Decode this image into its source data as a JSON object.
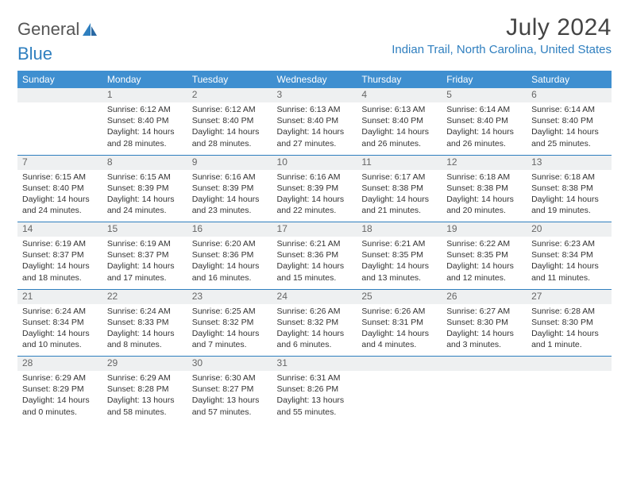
{
  "brand": {
    "general": "General",
    "blue": "Blue"
  },
  "title": {
    "month": "July 2024",
    "location": "Indian Trail, North Carolina, United States"
  },
  "colors": {
    "accent": "#3f8fd0",
    "link": "#2f7fbf",
    "daynum_bg": "#eef0f1",
    "text": "#333333"
  },
  "day_headers": [
    "Sunday",
    "Monday",
    "Tuesday",
    "Wednesday",
    "Thursday",
    "Friday",
    "Saturday"
  ],
  "weeks": [
    [
      null,
      {
        "n": "1",
        "sunrise": "6:12 AM",
        "sunset": "8:40 PM",
        "daylight": "14 hours and 28 minutes."
      },
      {
        "n": "2",
        "sunrise": "6:12 AM",
        "sunset": "8:40 PM",
        "daylight": "14 hours and 28 minutes."
      },
      {
        "n": "3",
        "sunrise": "6:13 AM",
        "sunset": "8:40 PM",
        "daylight": "14 hours and 27 minutes."
      },
      {
        "n": "4",
        "sunrise": "6:13 AM",
        "sunset": "8:40 PM",
        "daylight": "14 hours and 26 minutes."
      },
      {
        "n": "5",
        "sunrise": "6:14 AM",
        "sunset": "8:40 PM",
        "daylight": "14 hours and 26 minutes."
      },
      {
        "n": "6",
        "sunrise": "6:14 AM",
        "sunset": "8:40 PM",
        "daylight": "14 hours and 25 minutes."
      }
    ],
    [
      {
        "n": "7",
        "sunrise": "6:15 AM",
        "sunset": "8:40 PM",
        "daylight": "14 hours and 24 minutes."
      },
      {
        "n": "8",
        "sunrise": "6:15 AM",
        "sunset": "8:39 PM",
        "daylight": "14 hours and 24 minutes."
      },
      {
        "n": "9",
        "sunrise": "6:16 AM",
        "sunset": "8:39 PM",
        "daylight": "14 hours and 23 minutes."
      },
      {
        "n": "10",
        "sunrise": "6:16 AM",
        "sunset": "8:39 PM",
        "daylight": "14 hours and 22 minutes."
      },
      {
        "n": "11",
        "sunrise": "6:17 AM",
        "sunset": "8:38 PM",
        "daylight": "14 hours and 21 minutes."
      },
      {
        "n": "12",
        "sunrise": "6:18 AM",
        "sunset": "8:38 PM",
        "daylight": "14 hours and 20 minutes."
      },
      {
        "n": "13",
        "sunrise": "6:18 AM",
        "sunset": "8:38 PM",
        "daylight": "14 hours and 19 minutes."
      }
    ],
    [
      {
        "n": "14",
        "sunrise": "6:19 AM",
        "sunset": "8:37 PM",
        "daylight": "14 hours and 18 minutes."
      },
      {
        "n": "15",
        "sunrise": "6:19 AM",
        "sunset": "8:37 PM",
        "daylight": "14 hours and 17 minutes."
      },
      {
        "n": "16",
        "sunrise": "6:20 AM",
        "sunset": "8:36 PM",
        "daylight": "14 hours and 16 minutes."
      },
      {
        "n": "17",
        "sunrise": "6:21 AM",
        "sunset": "8:36 PM",
        "daylight": "14 hours and 15 minutes."
      },
      {
        "n": "18",
        "sunrise": "6:21 AM",
        "sunset": "8:35 PM",
        "daylight": "14 hours and 13 minutes."
      },
      {
        "n": "19",
        "sunrise": "6:22 AM",
        "sunset": "8:35 PM",
        "daylight": "14 hours and 12 minutes."
      },
      {
        "n": "20",
        "sunrise": "6:23 AM",
        "sunset": "8:34 PM",
        "daylight": "14 hours and 11 minutes."
      }
    ],
    [
      {
        "n": "21",
        "sunrise": "6:24 AM",
        "sunset": "8:34 PM",
        "daylight": "14 hours and 10 minutes."
      },
      {
        "n": "22",
        "sunrise": "6:24 AM",
        "sunset": "8:33 PM",
        "daylight": "14 hours and 8 minutes."
      },
      {
        "n": "23",
        "sunrise": "6:25 AM",
        "sunset": "8:32 PM",
        "daylight": "14 hours and 7 minutes."
      },
      {
        "n": "24",
        "sunrise": "6:26 AM",
        "sunset": "8:32 PM",
        "daylight": "14 hours and 6 minutes."
      },
      {
        "n": "25",
        "sunrise": "6:26 AM",
        "sunset": "8:31 PM",
        "daylight": "14 hours and 4 minutes."
      },
      {
        "n": "26",
        "sunrise": "6:27 AM",
        "sunset": "8:30 PM",
        "daylight": "14 hours and 3 minutes."
      },
      {
        "n": "27",
        "sunrise": "6:28 AM",
        "sunset": "8:30 PM",
        "daylight": "14 hours and 1 minute."
      }
    ],
    [
      {
        "n": "28",
        "sunrise": "6:29 AM",
        "sunset": "8:29 PM",
        "daylight": "14 hours and 0 minutes."
      },
      {
        "n": "29",
        "sunrise": "6:29 AM",
        "sunset": "8:28 PM",
        "daylight": "13 hours and 58 minutes."
      },
      {
        "n": "30",
        "sunrise": "6:30 AM",
        "sunset": "8:27 PM",
        "daylight": "13 hours and 57 minutes."
      },
      {
        "n": "31",
        "sunrise": "6:31 AM",
        "sunset": "8:26 PM",
        "daylight": "13 hours and 55 minutes."
      },
      null,
      null,
      null
    ]
  ],
  "labels": {
    "sunrise": "Sunrise:",
    "sunset": "Sunset:",
    "daylight": "Daylight:"
  }
}
